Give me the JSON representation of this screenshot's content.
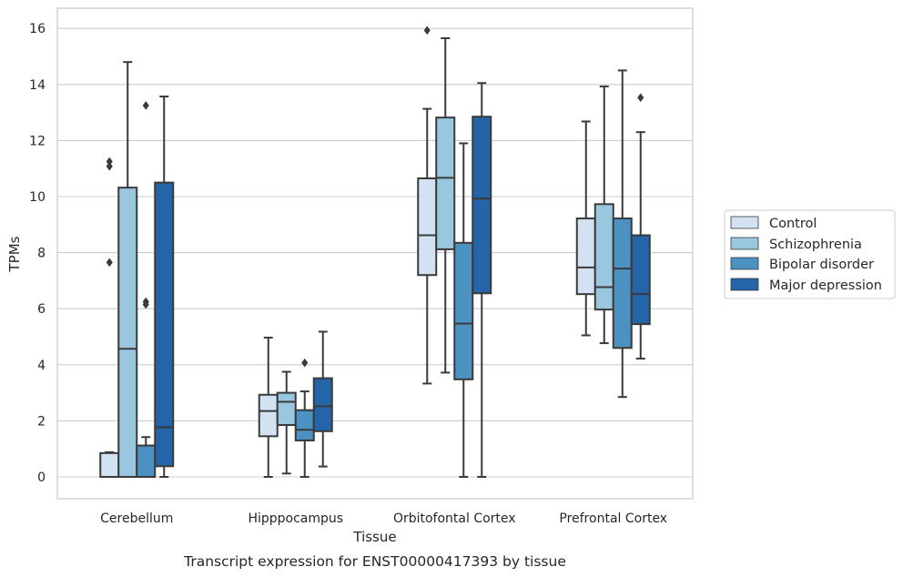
{
  "chart_data": {
    "type": "box",
    "caption": "Transcript expression for ENST00000417393 by tissue",
    "xlabel": "Tissue",
    "ylabel": "TPMs",
    "ylim": [
      -0.8,
      16.75
    ],
    "yticks": [
      0,
      2,
      4,
      6,
      8,
      10,
      12,
      14,
      16
    ],
    "grid": true,
    "legend_position": "right",
    "categories": [
      "Cerebellum",
      "Hipppocampus",
      "Orbitofontal Cortex",
      "Prefrontal Cortex"
    ],
    "colors": [
      "#d2e2f2",
      "#9ac7e0",
      "#4b91c2",
      "#2464a8"
    ],
    "edge_color": "#3a3a3a",
    "grid_color": "#cccccc",
    "series": [
      {
        "name": "Control",
        "boxes": [
          {
            "whislo": 0.0,
            "q1": 0.0,
            "med": 0.0,
            "q3": 0.85,
            "whishi": 0.88,
            "fliers": [
              11.25,
              11.08,
              7.65
            ]
          },
          {
            "whislo": 0.0,
            "q1": 1.45,
            "med": 2.35,
            "q3": 2.93,
            "whishi": 4.97,
            "fliers": []
          },
          {
            "whislo": 3.33,
            "q1": 7.2,
            "med": 8.62,
            "q3": 10.65,
            "whishi": 13.13,
            "fliers": [
              15.93
            ]
          },
          {
            "whislo": 5.05,
            "q1": 6.52,
            "med": 7.47,
            "q3": 9.22,
            "whishi": 12.68,
            "fliers": []
          }
        ]
      },
      {
        "name": "Schizophrenia",
        "boxes": [
          {
            "whislo": 0.0,
            "q1": 0.0,
            "med": 4.57,
            "q3": 10.32,
            "whishi": 14.8,
            "fliers": []
          },
          {
            "whislo": 0.12,
            "q1": 1.85,
            "med": 2.68,
            "q3": 3.0,
            "whishi": 3.75,
            "fliers": []
          },
          {
            "whislo": 3.72,
            "q1": 8.12,
            "med": 10.67,
            "q3": 12.82,
            "whishi": 15.65,
            "fliers": []
          },
          {
            "whislo": 4.77,
            "q1": 5.97,
            "med": 6.77,
            "q3": 9.73,
            "whishi": 13.93,
            "fliers": []
          }
        ]
      },
      {
        "name": "Bipolar disorder",
        "boxes": [
          {
            "whislo": 0.0,
            "q1": 0.0,
            "med": 0.0,
            "q3": 1.12,
            "whishi": 1.42,
            "fliers": [
              13.25,
              6.25,
              6.15
            ]
          },
          {
            "whislo": 0.0,
            "q1": 1.3,
            "med": 1.68,
            "q3": 2.38,
            "whishi": 3.05,
            "fliers": [
              4.07
            ]
          },
          {
            "whislo": 0.0,
            "q1": 3.48,
            "med": 5.47,
            "q3": 8.35,
            "whishi": 11.9,
            "fliers": []
          },
          {
            "whislo": 2.85,
            "q1": 4.6,
            "med": 7.43,
            "q3": 9.22,
            "whishi": 14.5,
            "fliers": []
          }
        ]
      },
      {
        "name": "Major depression",
        "boxes": [
          {
            "whislo": 0.0,
            "q1": 0.38,
            "med": 1.77,
            "q3": 10.5,
            "whishi": 13.57,
            "fliers": []
          },
          {
            "whislo": 0.37,
            "q1": 1.63,
            "med": 2.52,
            "q3": 3.52,
            "whishi": 5.18,
            "fliers": []
          },
          {
            "whislo": 0.0,
            "q1": 6.55,
            "med": 9.93,
            "q3": 12.85,
            "whishi": 14.05,
            "fliers": []
          },
          {
            "whislo": 4.22,
            "q1": 5.45,
            "med": 6.52,
            "q3": 8.62,
            "whishi": 12.3,
            "fliers": [
              13.53
            ]
          }
        ]
      }
    ]
  }
}
